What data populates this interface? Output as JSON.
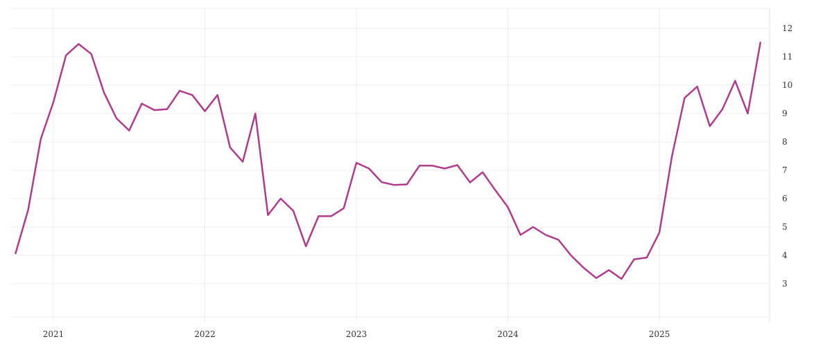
{
  "chart_data": {
    "type": "line",
    "title": "",
    "xlabel": "",
    "ylabel": "",
    "x_tick_labels": [
      "2021",
      "2022",
      "2023",
      "2024",
      "2025"
    ],
    "y_tick_labels": [
      "3",
      "4",
      "5",
      "6",
      "7",
      "8",
      "9",
      "10",
      "11",
      "12"
    ],
    "ylim": [
      1.8,
      12.8
    ],
    "xlim": [
      "2020-10",
      "2025-09"
    ],
    "grid": true,
    "legend": "none",
    "series": [
      {
        "color": "#b03a8c",
        "x": [
          "2020-10",
          "2020-11",
          "2020-12",
          "2021-01",
          "2021-02",
          "2021-03",
          "2021-04",
          "2021-05",
          "2021-06",
          "2021-07",
          "2021-08",
          "2021-09",
          "2021-10",
          "2021-11",
          "2021-12",
          "2022-01",
          "2022-02",
          "2022-03",
          "2022-04",
          "2022-05",
          "2022-06",
          "2022-07",
          "2022-08",
          "2022-09",
          "2022-10",
          "2022-11",
          "2022-12",
          "2023-01",
          "2023-02",
          "2023-03",
          "2023-04",
          "2023-05",
          "2023-06",
          "2023-07",
          "2023-08",
          "2023-09",
          "2023-10",
          "2023-11",
          "2023-12",
          "2024-01",
          "2024-02",
          "2024-03",
          "2024-04",
          "2024-05",
          "2024-06",
          "2024-07",
          "2024-08",
          "2024-09",
          "2024-10",
          "2024-11",
          "2024-12",
          "2025-01",
          "2025-02",
          "2025-03",
          "2025-04",
          "2025-05",
          "2025-06",
          "2025-07",
          "2025-08",
          "2025-09"
        ],
        "y": [
          4.07,
          5.6,
          8.1,
          9.4,
          11.05,
          11.45,
          11.1,
          9.75,
          8.83,
          8.4,
          9.35,
          9.12,
          9.15,
          9.8,
          9.65,
          9.08,
          9.65,
          7.8,
          7.3,
          9.0,
          5.42,
          6.0,
          5.57,
          4.32,
          5.38,
          5.38,
          5.66,
          7.26,
          7.06,
          6.58,
          6.48,
          6.5,
          7.16,
          7.16,
          7.06,
          7.18,
          6.57,
          6.93,
          6.3,
          5.7,
          4.72,
          5.0,
          4.72,
          4.55,
          4.0,
          3.56,
          3.2,
          3.48,
          3.17,
          3.86,
          3.92,
          4.8,
          7.5,
          9.55,
          9.95,
          8.55,
          9.15,
          10.15,
          9.0,
          11.5
        ]
      }
    ]
  }
}
